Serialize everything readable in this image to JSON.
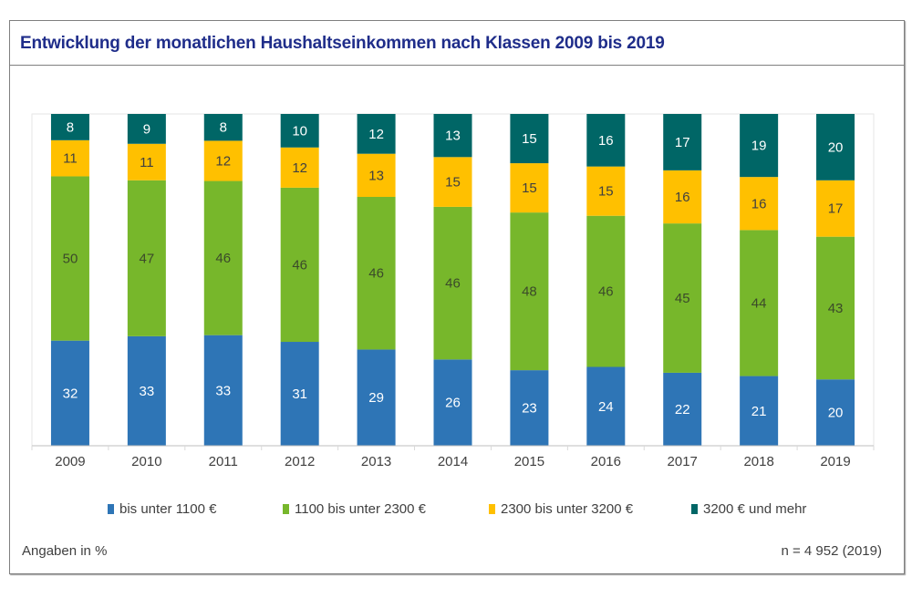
{
  "chart_data": {
    "type": "bar",
    "stacked": true,
    "title": "Entwicklung der monatlichen Haushaltseinkommen nach Klassen 2009 bis 2019",
    "xlabel": "",
    "ylabel": "",
    "unit_note": "Angaben in %",
    "sample_note": "n = 4 952 (2019)",
    "categories": [
      "2009",
      "2010",
      "2011",
      "2012",
      "2013",
      "2014",
      "2015",
      "2016",
      "2017",
      "2018",
      "2019"
    ],
    "series": [
      {
        "name": "bis unter 1100 €",
        "color": "#2e75b6",
        "label_color": "#ffffff",
        "values": [
          32,
          33,
          33,
          31,
          29,
          26,
          23,
          24,
          22,
          21,
          20
        ]
      },
      {
        "name": "1100 bis unter 2300 €",
        "color": "#77b72b",
        "label_color": "#3b4a2a",
        "values": [
          50,
          47,
          46,
          46,
          46,
          46,
          48,
          46,
          45,
          44,
          43
        ]
      },
      {
        "name": "2300 bis unter 3200 €",
        "color": "#ffc000",
        "label_color": "#404040",
        "values": [
          11,
          11,
          12,
          12,
          13,
          15,
          15,
          15,
          16,
          16,
          17
        ]
      },
      {
        "name": "3200 € und mehr",
        "color": "#006666",
        "label_color": "#ffffff",
        "values": [
          8,
          9,
          8,
          10,
          12,
          13,
          15,
          16,
          17,
          19,
          20
        ]
      }
    ],
    "ylim": [
      0,
      100
    ],
    "grid": false,
    "legend_position": "bottom"
  }
}
